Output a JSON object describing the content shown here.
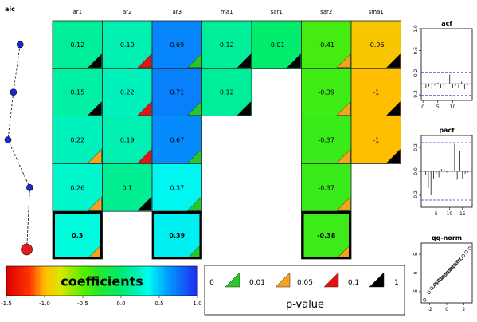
{
  "aic_panel": {
    "title": "aic",
    "points": [
      1,
      2,
      3,
      4,
      5
    ],
    "aic_rank": [
      0.4,
      0.18,
      0.0,
      0.72,
      0.62
    ],
    "best_index": 4,
    "point_color": "#1a2bd6",
    "best_color": "#e41a1c"
  },
  "chart_data": [
    {
      "type": "heatmap",
      "title": "",
      "columns": [
        "ar1",
        "ar2",
        "ar3",
        "ma1",
        "sar1",
        "sar2",
        "sma1"
      ],
      "rows": [
        {
          "values": [
            0.12,
            0.19,
            0.69,
            0.12,
            -0.01,
            -0.41,
            -0.96
          ],
          "pvalue_class": [
            "black",
            "red",
            "green",
            "black",
            "black",
            "orange",
            "black"
          ],
          "best": false
        },
        {
          "values": [
            0.15,
            0.22,
            0.71,
            0.12,
            null,
            -0.39,
            -1
          ],
          "pvalue_class": [
            "black",
            "red",
            "green",
            "black",
            null,
            "orange",
            "black"
          ],
          "best": false
        },
        {
          "values": [
            0.22,
            0.19,
            0.67,
            null,
            null,
            -0.37,
            -1
          ],
          "pvalue_class": [
            "orange",
            "red",
            "green",
            null,
            null,
            "orange",
            "black"
          ],
          "best": false
        },
        {
          "values": [
            0.26,
            0.1,
            0.37,
            null,
            null,
            -0.37,
            null
          ],
          "pvalue_class": [
            "orange",
            "black",
            "green",
            null,
            null,
            "orange",
            null
          ],
          "best": false
        },
        {
          "values": [
            0.3,
            null,
            0.39,
            null,
            null,
            -0.38,
            null
          ],
          "pvalue_class": [
            "orange",
            null,
            "green",
            null,
            null,
            "orange",
            null
          ],
          "best": true
        }
      ]
    },
    {
      "type": "bar",
      "title": "acf",
      "x": [
        1,
        2,
        3,
        4,
        5,
        6,
        7,
        8,
        9,
        10,
        11,
        12,
        13,
        14,
        15
      ],
      "values": [
        -0.07,
        -0.05,
        -0.1,
        -0.03,
        0.02,
        -0.08,
        -0.05,
        0.0,
        0.17,
        -0.07,
        -0.03,
        -0.08,
        0.04,
        -0.1,
        -0.03
      ],
      "ylim": [
        -0.3,
        1.0
      ],
      "yticks": [
        "-0.2",
        "0.2",
        "0.6",
        "1.0"
      ],
      "xticks": [
        "0",
        "5",
        "10"
      ],
      "conf_band": 0.21,
      "grid": false
    },
    {
      "type": "bar",
      "title": "pacf",
      "x": [
        1,
        2,
        3,
        4,
        5,
        6,
        7,
        8,
        9,
        10,
        11,
        12,
        13,
        14,
        15,
        16,
        17
      ],
      "values": [
        -0.03,
        -0.14,
        -0.2,
        -0.06,
        -0.02,
        -0.05,
        0.02,
        0.02,
        -0.01,
        0.0,
        -0.02,
        0.23,
        -0.07,
        0.17,
        -0.06,
        -0.02,
        -0.01
      ],
      "ylim": [
        -0.3,
        0.3
      ],
      "yticks": [
        "-0.2",
        "0.0",
        "0.2"
      ],
      "xticks": [
        "5",
        "10",
        "15"
      ],
      "conf_band": 0.24,
      "grid": false
    },
    {
      "type": "scatter",
      "title": "qq-norm",
      "points": [
        [
          -2.6,
          -7.2
        ],
        [
          -2.1,
          -5.2
        ],
        [
          -1.8,
          -4.1
        ],
        [
          -1.6,
          -3.6
        ],
        [
          -1.4,
          -3.1
        ],
        [
          -1.25,
          -2.8
        ],
        [
          -1.1,
          -2.4
        ],
        [
          -0.95,
          -2.0
        ],
        [
          -0.8,
          -1.7
        ],
        [
          -0.65,
          -1.5
        ],
        [
          -0.5,
          -1.2
        ],
        [
          -0.35,
          -0.9
        ],
        [
          -0.2,
          -0.6
        ],
        [
          -0.05,
          -0.2
        ],
        [
          0.1,
          0.1
        ],
        [
          0.25,
          0.5
        ],
        [
          0.4,
          0.9
        ],
        [
          0.55,
          1.2
        ],
        [
          0.7,
          1.5
        ],
        [
          0.85,
          1.9
        ],
        [
          1.0,
          2.3
        ],
        [
          1.15,
          2.7
        ],
        [
          1.3,
          3.1
        ],
        [
          1.5,
          3.4
        ],
        [
          1.7,
          3.9
        ],
        [
          1.95,
          4.6
        ],
        [
          2.3,
          5.6
        ],
        [
          2.7,
          6.6
        ]
      ],
      "xlim": [
        -3,
        3
      ],
      "ylim": [
        -8,
        8
      ],
      "xticks": [
        "-2",
        "0",
        "2"
      ],
      "yticks": [
        "-5",
        "0",
        "5"
      ],
      "grid": false
    }
  ],
  "colorbar": {
    "label": "coefficients",
    "ticks": [
      "-1.5",
      "-1.0",
      "-0.5",
      "0.0",
      "0.5",
      "1.0"
    ]
  },
  "pvalue_legend": {
    "label": "p-value",
    "breaks": [
      "0",
      "0.01",
      "0.05",
      "0.1",
      "1"
    ],
    "colors": {
      "green": "#27c72a",
      "orange": "#f5a31c",
      "red": "#e81010",
      "black": "#000000"
    }
  }
}
